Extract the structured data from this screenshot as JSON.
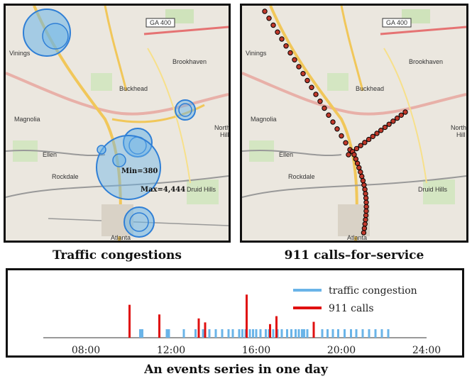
{
  "maps": {
    "labels": {
      "vinings": "Vinings",
      "brookhaven": "Brookhaven",
      "buckhead": "Buckhead",
      "magnolia": "Magnolia",
      "ellen": "Ellen",
      "rockdale": "Rockdale",
      "druid_hills": "Druid Hills",
      "atlanta": "Atlanta",
      "north": "North",
      "hill": "Hill",
      "ga400": "GA 400"
    },
    "left": {
      "caption": "Traffic congestions",
      "min_label": "Min=380",
      "max_label": "Max=4,444"
    },
    "right": {
      "caption": "911 calls–for–service"
    }
  },
  "timeline": {
    "caption": "An events series in one day",
    "legend": {
      "traffic": "traffic congestion",
      "calls": "911 calls"
    },
    "colors": {
      "traffic": "#6ab4e8",
      "calls": "#e01010"
    },
    "ticks": [
      "08:00",
      "12:00",
      "16:00",
      "20:00",
      "24:00"
    ],
    "traffic_hours": [
      10.55,
      10.65,
      11.8,
      11.9,
      12.6,
      13.15,
      13.5,
      13.8,
      14.1,
      14.4,
      14.7,
      14.9,
      15.2,
      15.35,
      15.5,
      15.7,
      15.85,
      16.0,
      16.2,
      16.45,
      16.6,
      16.8,
      17.0,
      17.2,
      17.45,
      17.65,
      17.85,
      18.0,
      18.15,
      18.25,
      18.4,
      19.1,
      19.35,
      19.6,
      19.85,
      20.15,
      20.45,
      20.7,
      21.0,
      21.3,
      21.6,
      21.9,
      22.2
    ],
    "calls": [
      {
        "hour": 10.05,
        "height": 0.58
      },
      {
        "hour": 11.45,
        "height": 0.41
      },
      {
        "hour": 13.3,
        "height": 0.34
      },
      {
        "hour": 13.6,
        "height": 0.27
      },
      {
        "hour": 15.55,
        "height": 0.76
      },
      {
        "hour": 16.65,
        "height": 0.24
      },
      {
        "hour": 16.95,
        "height": 0.38
      },
      {
        "hour": 18.7,
        "height": 0.28
      }
    ]
  }
}
